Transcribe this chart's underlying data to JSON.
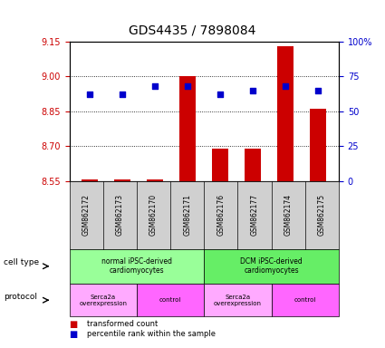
{
  "title": "GDS4435 / 7898084",
  "samples": [
    "GSM862172",
    "GSM862173",
    "GSM862170",
    "GSM862171",
    "GSM862176",
    "GSM862177",
    "GSM862174",
    "GSM862175"
  ],
  "bar_values": [
    8.556,
    8.555,
    8.555,
    9.0,
    8.69,
    8.69,
    9.13,
    8.86
  ],
  "bar_base": 8.55,
  "percentile_values": [
    62,
    62,
    68,
    68,
    62,
    65,
    68,
    65
  ],
  "ylim_left": [
    8.55,
    9.15
  ],
  "ylim_right": [
    0,
    100
  ],
  "yticks_left": [
    8.55,
    8.7,
    8.85,
    9.0,
    9.15
  ],
  "yticks_right": [
    0,
    25,
    50,
    75,
    100
  ],
  "ytick_labels_right": [
    "0",
    "25",
    "50",
    "75",
    "100%"
  ],
  "bar_color": "#cc0000",
  "dot_color": "#0000cc",
  "cell_type_groups": [
    {
      "label": "normal iPSC-derived\ncardiomyocytes",
      "start": 0,
      "end": 4,
      "color": "#99ff99"
    },
    {
      "label": "DCM iPSC-derived\ncardiomyocytes",
      "start": 4,
      "end": 8,
      "color": "#66ee66"
    }
  ],
  "protocol_groups": [
    {
      "label": "Serca2a\noverexpression",
      "start": 0,
      "end": 2,
      "color": "#ffaaff"
    },
    {
      "label": "control",
      "start": 2,
      "end": 4,
      "color": "#ff66ff"
    },
    {
      "label": "Serca2a\noverexpression",
      "start": 4,
      "end": 6,
      "color": "#ffaaff"
    },
    {
      "label": "control",
      "start": 6,
      "end": 8,
      "color": "#ff66ff"
    }
  ],
  "xlabel_color": "#cc0000",
  "ylabel_right_color": "#0000cc"
}
